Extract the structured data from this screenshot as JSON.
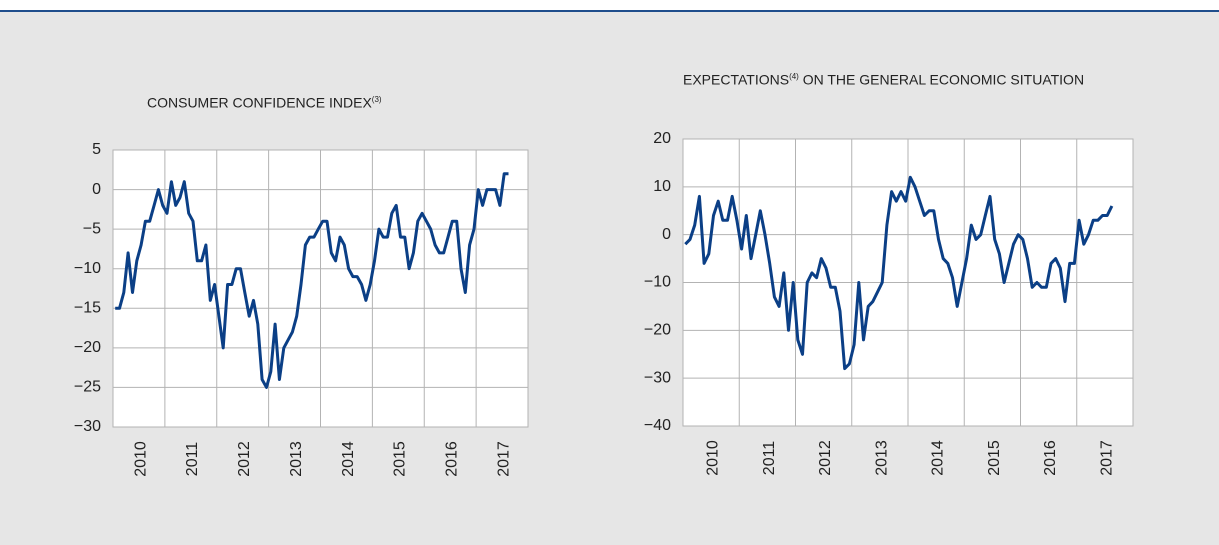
{
  "chart_data": [
    {
      "type": "line",
      "title": "CONSUMER CONFIDENCE INDEX",
      "title_superscript": "(3)",
      "categories": [
        null,
        null,
        null,
        null,
        null,
        null,
        "2010",
        null,
        null,
        null,
        null,
        null,
        null,
        null,
        null,
        null,
        null,
        null,
        "2011",
        null,
        null,
        null,
        null,
        null,
        null,
        null,
        null,
        null,
        null,
        null,
        "2012",
        null,
        null,
        null,
        null,
        null,
        null,
        null,
        null,
        null,
        null,
        null,
        "2013",
        null,
        null,
        null,
        null,
        null,
        null,
        null,
        null,
        null,
        null,
        null,
        "2014",
        null,
        null,
        null,
        null,
        null,
        null,
        null,
        null,
        null,
        null,
        null,
        "2015",
        null,
        null,
        null,
        null,
        null,
        null,
        null,
        null,
        null,
        null,
        null,
        "2016",
        null,
        null,
        null,
        null,
        null,
        null,
        null,
        null,
        null,
        null,
        null,
        "2017",
        null
      ],
      "values": [
        -15,
        -15,
        -13,
        -8,
        -13,
        -9,
        -7,
        -4,
        -4,
        -2,
        0,
        -2,
        -3,
        1,
        -2,
        -1,
        1,
        -3,
        -4,
        -9,
        -9,
        -7,
        -14,
        -12,
        -16,
        -20,
        -12,
        -12,
        -10,
        -10,
        -13,
        -16,
        -14,
        -17,
        -24,
        -25,
        -23,
        -17,
        -24,
        -20,
        -19,
        -18,
        -16,
        -12,
        -7,
        -6,
        -6,
        -5,
        -4,
        -4,
        -8,
        -9,
        -6,
        -7,
        -10,
        -11,
        -11,
        -12,
        -14,
        -12,
        -9,
        -5,
        -6,
        -6,
        -3,
        -2,
        -6,
        -6,
        -10,
        -8,
        -4,
        -3,
        -4,
        -5,
        -7,
        -8,
        -8,
        -6,
        -4,
        -4,
        -10,
        -13,
        -7,
        -5,
        0,
        -2,
        0,
        0,
        0,
        -2,
        2,
        2
      ],
      "color": "#0b3f86",
      "ylim": [
        -30,
        5
      ],
      "yticks": [
        5,
        0,
        {
          "value": -5,
          "label": "−5"
        },
        {
          "value": -10,
          "label": "−10"
        },
        {
          "value": -15,
          "label": "−15"
        },
        {
          "value": -20,
          "label": "−20"
        },
        {
          "value": -25,
          "label": "−25"
        },
        {
          "value": -30,
          "label": "−30"
        }
      ],
      "grid": true
    },
    {
      "type": "line",
      "title": "EXPECTATIONS",
      "title_superscript": "(4)",
      "title_rest": "ON THE GENERAL ECONOMIC SITUATION",
      "categories": [
        null,
        null,
        null,
        null,
        null,
        null,
        "2010",
        null,
        null,
        null,
        null,
        null,
        null,
        null,
        null,
        null,
        null,
        null,
        "2011",
        null,
        null,
        null,
        null,
        null,
        null,
        null,
        null,
        null,
        null,
        null,
        "2012",
        null,
        null,
        null,
        null,
        null,
        null,
        null,
        null,
        null,
        null,
        null,
        "2013",
        null,
        null,
        null,
        null,
        null,
        null,
        null,
        null,
        null,
        null,
        null,
        "2014",
        null,
        null,
        null,
        null,
        null,
        null,
        null,
        null,
        null,
        null,
        null,
        "2015",
        null,
        null,
        null,
        null,
        null,
        null,
        null,
        null,
        null,
        null,
        null,
        "2016",
        null,
        null,
        null,
        null,
        null,
        null,
        null,
        null,
        null,
        null,
        null,
        "2017",
        null
      ],
      "values": [
        -2,
        -1,
        2,
        8,
        -6,
        -4,
        4,
        7,
        3,
        3,
        8,
        3,
        -3,
        4,
        -5,
        0,
        5,
        0,
        -6,
        -13,
        -15,
        -8,
        -20,
        -10,
        -22,
        -25,
        -10,
        -8,
        -9,
        -5,
        -7,
        -11,
        -11,
        -16,
        -28,
        -27,
        -23,
        -10,
        -22,
        -15,
        -14,
        -12,
        -10,
        2,
        9,
        7,
        9,
        7,
        12,
        10,
        7,
        4,
        5,
        5,
        -1,
        -5,
        -6,
        -9,
        -15,
        -10,
        -5,
        2,
        -1,
        0,
        4,
        8,
        -1,
        -4,
        -10,
        -6,
        -2,
        0,
        -1,
        -5,
        -11,
        -10,
        -11,
        -11,
        -6,
        -5,
        -7,
        -14,
        -6,
        -6,
        3,
        -2,
        0,
        3,
        3,
        4,
        4,
        6
      ],
      "color": "#0b3f86",
      "ylim": [
        -40,
        20
      ],
      "yticks": [
        20,
        10,
        0,
        {
          "value": -10,
          "label": "−10"
        },
        {
          "value": -20,
          "label": "−20"
        },
        {
          "value": -30,
          "label": "−30"
        },
        {
          "value": -40,
          "label": "−40"
        }
      ],
      "grid": true
    }
  ]
}
